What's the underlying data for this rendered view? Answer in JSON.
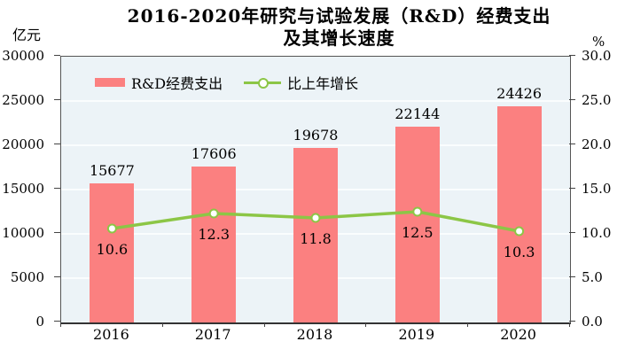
{
  "title": {
    "line1": "2016-2020年研究与试验发展（R&D）经费支出",
    "line2": "及其增长速度"
  },
  "axes": {
    "left_unit": "亿元",
    "right_unit": "%",
    "left_ticks": [
      "0",
      "5000",
      "10000",
      "15000",
      "20000",
      "25000",
      "30000"
    ],
    "right_ticks": [
      "0.0",
      "5.0",
      "10.0",
      "15.0",
      "20.0",
      "25.0",
      "30.0"
    ]
  },
  "legend": {
    "bar_label": "R&D经费支出",
    "line_label": "比上年增长"
  },
  "colors": {
    "bar": "#fb8080",
    "line": "#8cc646",
    "marker_fill": "#ffffff",
    "plot_bg": "#ecf3f7",
    "grid": "#fafdfe",
    "axis": "#444444"
  },
  "chart_data": {
    "type": "bar",
    "title": "2016-2020年研究与试验发展（R&D）经费支出及其增长速度",
    "categories": [
      "2016",
      "2017",
      "2018",
      "2019",
      "2020"
    ],
    "series": [
      {
        "name": "R&D经费支出",
        "type": "bar",
        "axis": "left",
        "values": [
          15677,
          17606,
          19678,
          22144,
          24426
        ]
      },
      {
        "name": "比上年增长",
        "type": "line",
        "axis": "right",
        "values": [
          10.6,
          12.3,
          11.8,
          12.5,
          10.3
        ]
      }
    ],
    "left_ylabel": "亿元",
    "right_ylabel": "%",
    "left_ylim": [
      0,
      30000
    ],
    "right_ylim": [
      0,
      30
    ],
    "left_tick_step": 5000,
    "right_tick_step": 5,
    "grid": true,
    "legend_position": "top-left-inside"
  }
}
